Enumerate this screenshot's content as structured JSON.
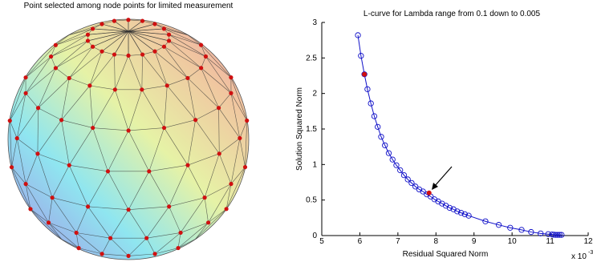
{
  "sphere_panel": {
    "title": "Point selected among node points for limited measurement"
  },
  "chart_data": {
    "type": "line",
    "title": "L-curve for Lambda range from 0.1 down to 0.005",
    "x_label": "Residual Squared Norm",
    "y_label": "Solution Squared Norm",
    "x_multiplier": "x 10",
    "x_exponent": "-3",
    "x": [
      5.95,
      6.03,
      6.12,
      6.2,
      6.29,
      6.38,
      6.47,
      6.56,
      6.66,
      6.76,
      6.86,
      6.96,
      7.06,
      7.16,
      7.26,
      7.36,
      7.46,
      7.56,
      7.66,
      7.76,
      7.86,
      7.96,
      8.06,
      8.16,
      8.26,
      8.36,
      8.46,
      8.56,
      8.66,
      8.76,
      8.86,
      9.3,
      9.65,
      9.95,
      10.25,
      10.5,
      10.75,
      10.95,
      11.05,
      11.1,
      11.15,
      11.2,
      11.25,
      11.3
    ],
    "values": [
      2.82,
      2.53,
      2.27,
      2.06,
      1.86,
      1.68,
      1.53,
      1.39,
      1.27,
      1.16,
      1.07,
      0.99,
      0.92,
      0.85,
      0.79,
      0.74,
      0.69,
      0.65,
      0.62,
      0.58,
      0.55,
      0.51,
      0.48,
      0.45,
      0.42,
      0.39,
      0.37,
      0.34,
      0.32,
      0.3,
      0.28,
      0.2,
      0.15,
      0.11,
      0.08,
      0.05,
      0.03,
      0.02,
      0.015,
      0.012,
      0.01,
      0.01,
      0.01,
      0.01
    ],
    "color": "#1010c8",
    "highlights": {
      "x": [
        6.12,
        7.82
      ],
      "values": [
        2.27,
        0.6
      ],
      "color": "#d01010"
    },
    "xlim": [
      5,
      12
    ],
    "ylim": [
      0,
      3
    ],
    "xticks": [
      5,
      6,
      7,
      8,
      9,
      10,
      11,
      12
    ],
    "yticks": [
      0,
      0.5,
      1,
      1.5,
      2,
      2.5,
      3
    ]
  }
}
